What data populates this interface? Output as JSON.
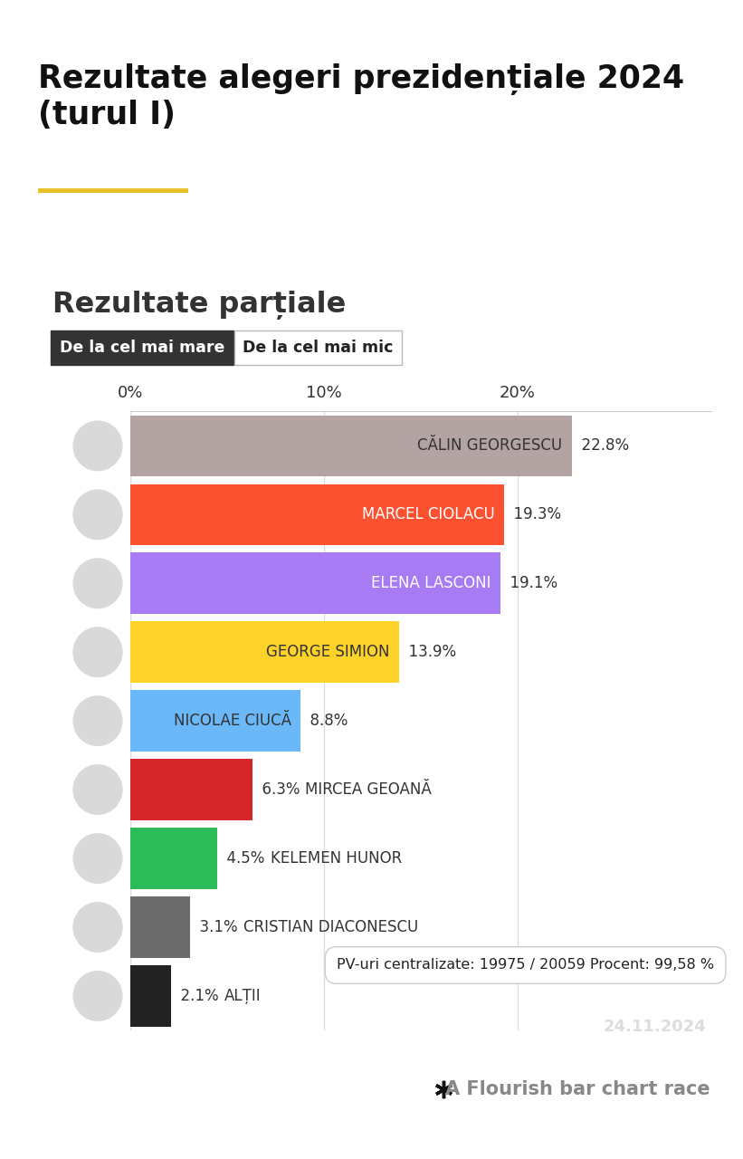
{
  "chart_data": {
    "type": "bar",
    "orientation": "horizontal",
    "title": "Rezultate alegeri prezidențiale 2024 (turul I)",
    "subtitle": "Rezultate parțiale",
    "buttons": [
      "De la cel mai mare",
      "De la cel mai mic"
    ],
    "categories": [
      "CĂLIN GEORGESCU",
      "MARCEL CIOLACU",
      "ELENA LASCONI",
      "GEORGE SIMION",
      "NICOLAE CIUCĂ",
      "MIRCEA GEOANĂ",
      "KELEMEN HUNOR",
      "CRISTIAN DIACONESCU",
      "ALȚII"
    ],
    "values": [
      22.8,
      19.3,
      19.1,
      13.9,
      8.8,
      6.3,
      4.5,
      3.1,
      2.1
    ],
    "value_labels": [
      "22.8%",
      "19.3%",
      "19.1%",
      "13.9%",
      "8.8%",
      "6.3%",
      "4.5%",
      "3.1%",
      "2.1%"
    ],
    "colors": [
      "#b3a3a3",
      "#fc5130",
      "#a77bf3",
      "#fdd22b",
      "#6ab8f7",
      "#d5262b",
      "#2dbb5a",
      "#6c6c6c",
      "#222222"
    ],
    "xlim": [
      0,
      30
    ],
    "xticks": [
      {
        "value": 0,
        "label": "0%"
      },
      {
        "value": 10,
        "label": "10%"
      },
      {
        "value": 20,
        "label": "20%"
      }
    ],
    "grid": true,
    "data_labels": true,
    "tick_labels": "x",
    "annotations": [
      "PV-uri centralizate: 19975 / 20059 Procent: 99,58 %",
      "24.11.2024",
      "A Flourish bar chart race"
    ]
  }
}
